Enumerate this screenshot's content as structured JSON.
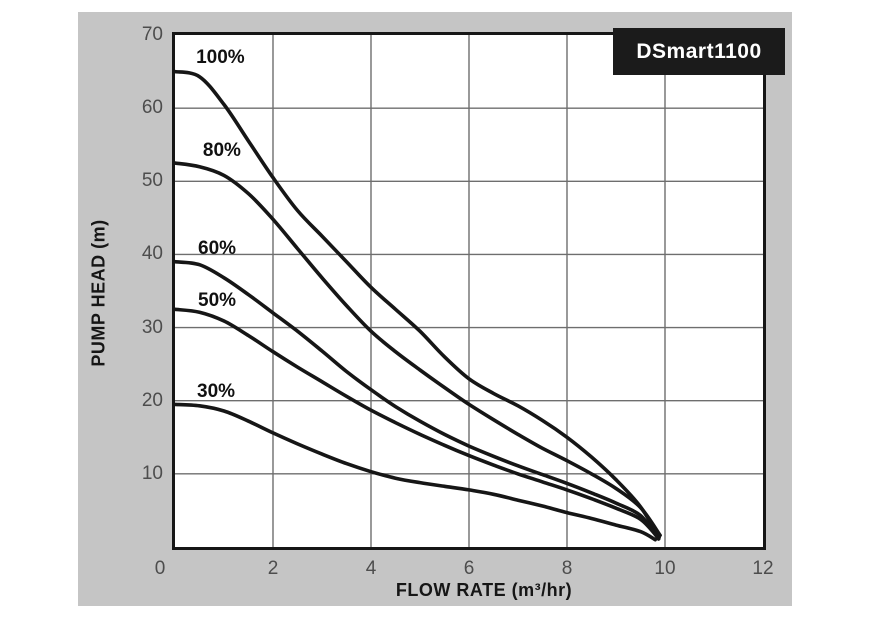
{
  "title_badge": {
    "label": "DSmart1100",
    "bg": "#1b1b1b",
    "text_color": "#ffffff"
  },
  "colors": {
    "page_bg": "#ffffff",
    "panel_bg": "#c5c5c5",
    "plot_bg": "#ffffff",
    "border": "#161616",
    "grid": "#6e6e6e",
    "curve": "#161616",
    "tick_text": "#4d4d4d",
    "label_text": "#111111"
  },
  "chart_data": {
    "type": "line",
    "title": "DSmart1100",
    "xlabel": "FLOW RATE (m³/hr)",
    "ylabel": "PUMP HEAD (m)",
    "xlim": [
      0,
      12
    ],
    "ylim": [
      0,
      70
    ],
    "x_ticks": [
      0,
      2,
      4,
      6,
      8,
      10,
      12
    ],
    "y_ticks": [
      10,
      20,
      30,
      40,
      50,
      60,
      70
    ],
    "grid": true,
    "x_grid_step": 2,
    "y_grid_step": 10,
    "legend_position": "inline-curve-labels",
    "series": [
      {
        "name": "100%",
        "speed_percent": 100,
        "label_pos": {
          "x": 0.43,
          "y": 66.9
        },
        "points": [
          [
            0,
            65
          ],
          [
            0.5,
            64.3
          ],
          [
            1,
            60.5
          ],
          [
            1.5,
            55.5
          ],
          [
            2,
            50.5
          ],
          [
            2.5,
            46
          ],
          [
            3,
            42.5
          ],
          [
            3.5,
            39
          ],
          [
            4,
            35.5
          ],
          [
            4.5,
            32.5
          ],
          [
            5,
            29.5
          ],
          [
            5.5,
            26
          ],
          [
            6,
            23
          ],
          [
            6.5,
            21
          ],
          [
            7,
            19.3
          ],
          [
            7.5,
            17.3
          ],
          [
            8,
            15
          ],
          [
            8.5,
            12.3
          ],
          [
            9,
            9.2
          ],
          [
            9.5,
            5.5
          ],
          [
            9.88,
            1.3
          ]
        ]
      },
      {
        "name": "80%",
        "speed_percent": 80,
        "label_pos": {
          "x": 0.57,
          "y": 54.2
        },
        "points": [
          [
            0,
            52.5
          ],
          [
            0.5,
            52
          ],
          [
            1,
            50.8
          ],
          [
            1.5,
            48.3
          ],
          [
            2,
            44.8
          ],
          [
            2.5,
            40.8
          ],
          [
            3,
            36.8
          ],
          [
            3.5,
            33
          ],
          [
            4,
            29.5
          ],
          [
            4.5,
            26.7
          ],
          [
            5,
            24.2
          ],
          [
            5.5,
            21.8
          ],
          [
            6,
            19.5
          ],
          [
            6.5,
            17.4
          ],
          [
            7,
            15.4
          ],
          [
            7.5,
            13.5
          ],
          [
            8,
            11.8
          ],
          [
            8.5,
            10
          ],
          [
            9,
            8
          ],
          [
            9.5,
            5.4
          ],
          [
            9.9,
            1.6
          ]
        ]
      },
      {
        "name": "60%",
        "speed_percent": 60,
        "label_pos": {
          "x": 0.47,
          "y": 40.8
        },
        "points": [
          [
            0,
            39
          ],
          [
            0.5,
            38.6
          ],
          [
            1,
            36.8
          ],
          [
            1.5,
            34.5
          ],
          [
            2,
            32
          ],
          [
            2.5,
            29.5
          ],
          [
            3,
            26.8
          ],
          [
            3.5,
            24
          ],
          [
            4,
            21.5
          ],
          [
            4.5,
            19.2
          ],
          [
            5,
            17.2
          ],
          [
            5.5,
            15.4
          ],
          [
            6,
            13.8
          ],
          [
            6.5,
            12.4
          ],
          [
            7,
            11.1
          ],
          [
            7.5,
            9.9
          ],
          [
            8,
            8.7
          ],
          [
            8.5,
            7.4
          ],
          [
            9,
            6
          ],
          [
            9.5,
            4.3
          ],
          [
            9.87,
            1.1
          ]
        ]
      },
      {
        "name": "50%",
        "speed_percent": 50,
        "label_pos": {
          "x": 0.47,
          "y": 33.6
        },
        "points": [
          [
            0,
            32.5
          ],
          [
            0.5,
            32.1
          ],
          [
            1,
            30.9
          ],
          [
            1.5,
            28.9
          ],
          [
            2,
            26.7
          ],
          [
            2.5,
            24.6
          ],
          [
            3,
            22.6
          ],
          [
            3.5,
            20.6
          ],
          [
            4,
            18.7
          ],
          [
            4.5,
            17
          ],
          [
            5,
            15.4
          ],
          [
            5.5,
            13.9
          ],
          [
            6,
            12.5
          ],
          [
            6.5,
            11.2
          ],
          [
            7,
            10
          ],
          [
            7.5,
            8.9
          ],
          [
            8,
            7.8
          ],
          [
            8.5,
            6.6
          ],
          [
            9,
            5.3
          ],
          [
            9.5,
            3.8
          ],
          [
            9.84,
            1.4
          ]
        ]
      },
      {
        "name": "30%",
        "speed_percent": 30,
        "label_pos": {
          "x": 0.45,
          "y": 21.2
        },
        "points": [
          [
            0,
            19.5
          ],
          [
            0.5,
            19.3
          ],
          [
            1,
            18.6
          ],
          [
            1.5,
            17.2
          ],
          [
            2,
            15.6
          ],
          [
            2.5,
            14.1
          ],
          [
            3,
            12.7
          ],
          [
            3.5,
            11.4
          ],
          [
            4,
            10.3
          ],
          [
            4.5,
            9.4
          ],
          [
            5,
            8.8
          ],
          [
            5.5,
            8.3
          ],
          [
            6,
            7.8
          ],
          [
            6.5,
            7.2
          ],
          [
            7,
            6.4
          ],
          [
            7.5,
            5.6
          ],
          [
            8,
            4.7
          ],
          [
            8.5,
            3.9
          ],
          [
            9,
            3
          ],
          [
            9.5,
            2.1
          ],
          [
            9.8,
            1
          ]
        ]
      }
    ]
  }
}
